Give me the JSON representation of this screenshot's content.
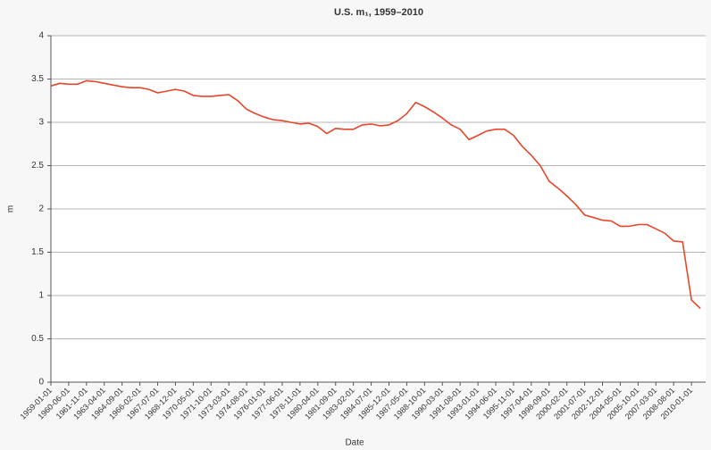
{
  "chart_data": {
    "type": "line",
    "title": "U.S. m₁, 1959–2010",
    "x_label": "Date",
    "y_label": "m",
    "categories": [
      "1959-01-01",
      null,
      "1960-06-01",
      null,
      "1961-11-01",
      null,
      "1963-04-01",
      null,
      "1964-09-01",
      null,
      "1966-02-01",
      null,
      "1967-07-01",
      null,
      "1968-12-01",
      null,
      "1970-05-01",
      null,
      "1971-10-01",
      null,
      "1973-03-01",
      null,
      "1974-08-01",
      null,
      "1976-01-01",
      null,
      "1977-06-01",
      null,
      "1978-11-01",
      null,
      "1980-04-01",
      null,
      "1981-09-01",
      null,
      "1983-02-01",
      null,
      "1984-07-01",
      null,
      "1985-12-01",
      null,
      "1987-05-01",
      null,
      "1988-10-01",
      null,
      "1990-03-01",
      null,
      "1991-08-01",
      null,
      "1993-01-01",
      null,
      "1994-06-01",
      null,
      "1995-11-01",
      null,
      "1997-04-01",
      null,
      "1998-09-01",
      null,
      "2000-02-01",
      null,
      "2001-07-01",
      null,
      "2002-12-01",
      null,
      "2004-05-01",
      null,
      "2005-10-01",
      null,
      "2007-03-01",
      null,
      "2008-08-01",
      null,
      "2010-01-01",
      null
    ],
    "series": [
      {
        "name": "m",
        "color": "#e8462a",
        "values": [
          3.42,
          3.45,
          3.44,
          3.44,
          3.48,
          3.47,
          3.45,
          3.43,
          3.41,
          3.4,
          3.4,
          3.38,
          3.34,
          3.36,
          3.38,
          3.36,
          3.31,
          3.3,
          3.3,
          3.31,
          3.32,
          3.25,
          3.15,
          3.1,
          3.06,
          3.03,
          3.02,
          3.0,
          2.98,
          2.99,
          2.95,
          2.87,
          2.93,
          2.92,
          2.92,
          2.97,
          2.98,
          2.96,
          2.97,
          3.02,
          3.1,
          3.23,
          3.18,
          3.12,
          3.05,
          2.97,
          2.92,
          2.8,
          2.85,
          2.9,
          2.92,
          2.92,
          2.85,
          2.72,
          2.62,
          2.5,
          2.32,
          2.24,
          2.15,
          2.05,
          1.93,
          1.9,
          1.87,
          1.86,
          1.8,
          1.8,
          1.82,
          1.82,
          1.77,
          1.72,
          1.63,
          1.62,
          0.95,
          0.85
        ]
      }
    ],
    "ylim": [
      0,
      4
    ],
    "yticks": [
      0,
      0.5,
      1,
      1.5,
      2,
      2.5,
      3,
      3.5,
      4
    ],
    "grid": true
  }
}
